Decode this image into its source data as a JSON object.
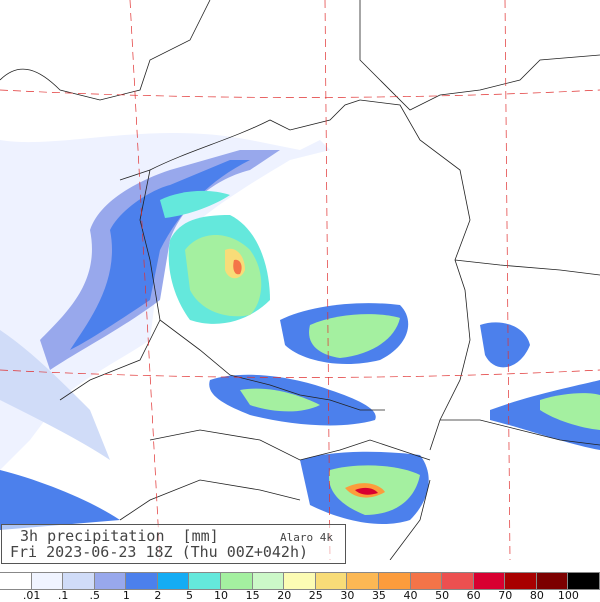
{
  "title": {
    "line1": "3h precipitation  [mm]",
    "model": "Alaro 4k",
    "line2": "Fri 2023-06-23 18Z (Thu 00Z+042h)"
  },
  "legend": {
    "labels": [
      ".01",
      ".1",
      ".5",
      "1",
      "2",
      "5",
      "10",
      "15",
      "20",
      "25",
      "30",
      "35",
      "40",
      "50",
      "60",
      "70",
      "80",
      "100"
    ],
    "colors": [
      "#ffffff",
      "#f0f4ff",
      "#d0dcf8",
      "#98a8ec",
      "#4c80ec",
      "#14acf4",
      "#64e8dc",
      "#a4f0a0",
      "#ccf8c8",
      "#fcfcb4",
      "#f8dc78",
      "#fcb854",
      "#fc9c3c",
      "#f47448",
      "#ec5050",
      "#d80030",
      "#a80000",
      "#7c0000",
      "#000000"
    ]
  }
}
